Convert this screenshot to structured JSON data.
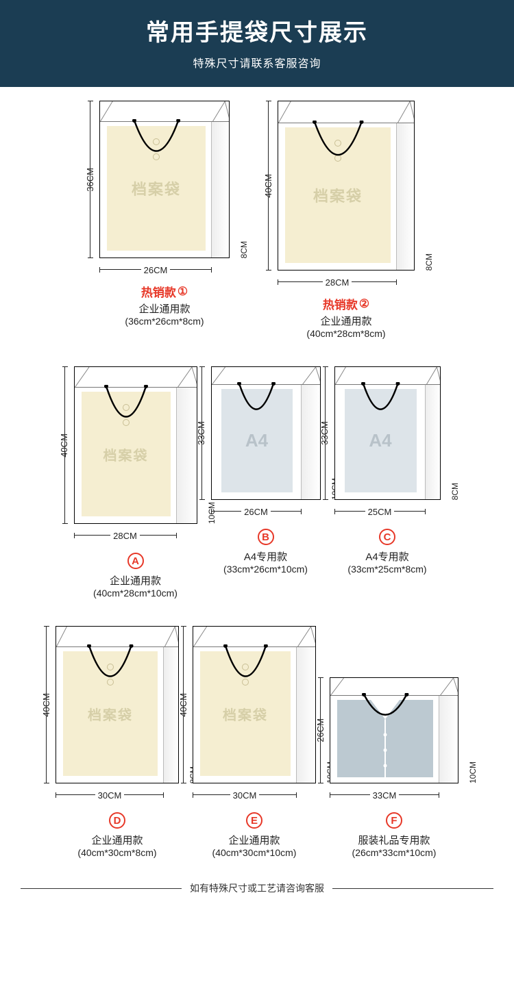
{
  "header": {
    "title": "常用手提袋尺寸展示",
    "subtitle": "特殊尺寸请联系客服咨询",
    "bg_color": "#1b3d53",
    "text_color": "#ffffff"
  },
  "colors": {
    "hot_color": "#e73828",
    "envelope_bg": "#f5eed1",
    "envelope_text": "#d6cfa8",
    "a4_bg": "#dde4e9",
    "a4_text": "#b8c2c9",
    "shirt_bg": "#bcc9d1",
    "dim_color": "#222222"
  },
  "bags": [
    {
      "id": "hot1",
      "hot_text": "热销款",
      "hot_num": "①",
      "type": "企业通用款",
      "size_text": "(36cm*26cm*8cm)",
      "h_label": "36CM",
      "w_label": "26CM",
      "d_label": "8CM",
      "content": "envelope",
      "content_text": "档案袋",
      "bag_w": 190,
      "bag_h": 230,
      "side_w": 26,
      "top_h": 30,
      "env_fs": 22
    },
    {
      "id": "hot2",
      "hot_text": "热销款",
      "hot_num": "②",
      "type": "企业通用款",
      "size_text": "(40cm*28cm*8cm)",
      "h_label": "40CM",
      "w_label": "28CM",
      "d_label": "8CM",
      "content": "envelope",
      "content_text": "档案袋",
      "bag_w": 200,
      "bag_h": 248,
      "side_w": 26,
      "top_h": 32,
      "env_fs": 22
    },
    {
      "id": "A",
      "letter": "A",
      "type": "企业通用款",
      "size_text": "(40cm*28cm*10cm)",
      "h_label": "40CM",
      "w_label": "28CM",
      "d_label": "10CM",
      "content": "envelope",
      "content_text": "档案袋",
      "bag_w": 180,
      "bag_h": 230,
      "side_w": 30,
      "top_h": 30,
      "env_fs": 20
    },
    {
      "id": "B",
      "letter": "B",
      "type": "A4专用款",
      "size_text": "(33cm*26cm*10cm)",
      "h_label": "33CM",
      "w_label": "26CM",
      "d_label": "10CM",
      "content": "a4",
      "content_text": "A4",
      "bag_w": 160,
      "bag_h": 195,
      "side_w": 28,
      "top_h": 26,
      "env_fs": 26
    },
    {
      "id": "C",
      "letter": "C",
      "type": "A4专用款",
      "size_text": "(33cm*25cm*8cm)",
      "h_label": "33CM",
      "w_label": "25CM",
      "d_label": "8CM",
      "content": "a4",
      "content_text": "A4",
      "bag_w": 155,
      "bag_h": 195,
      "side_w": 22,
      "top_h": 26,
      "env_fs": 26
    },
    {
      "id": "D",
      "letter": "D",
      "type": "企业通用款",
      "size_text": "(40cm*30cm*8cm)",
      "h_label": "40CM",
      "w_label": "30CM",
      "d_label": "8CM",
      "content": "envelope",
      "content_text": "档案袋",
      "bag_w": 180,
      "bag_h": 230,
      "side_w": 22,
      "top_h": 30,
      "env_fs": 20
    },
    {
      "id": "E",
      "letter": "E",
      "type": "企业通用款",
      "size_text": "(40cm*30cm*10cm)",
      "h_label": "40CM",
      "w_label": "30CM",
      "d_label": "10CM",
      "content": "envelope",
      "content_text": "档案袋",
      "bag_w": 180,
      "bag_h": 230,
      "side_w": 28,
      "top_h": 30,
      "env_fs": 20
    },
    {
      "id": "F",
      "letter": "F",
      "type": "服装礼品专用款",
      "size_text": "(26cm*33cm*10cm)",
      "h_label": "26CM",
      "w_label": "33CM",
      "d_label": "10CM",
      "content": "shirt",
      "content_text": "",
      "bag_w": 188,
      "bag_h": 155,
      "side_w": 28,
      "top_h": 26,
      "env_fs": 20
    }
  ],
  "footer": {
    "text": "如有特殊尺寸或工艺请咨询客服"
  }
}
